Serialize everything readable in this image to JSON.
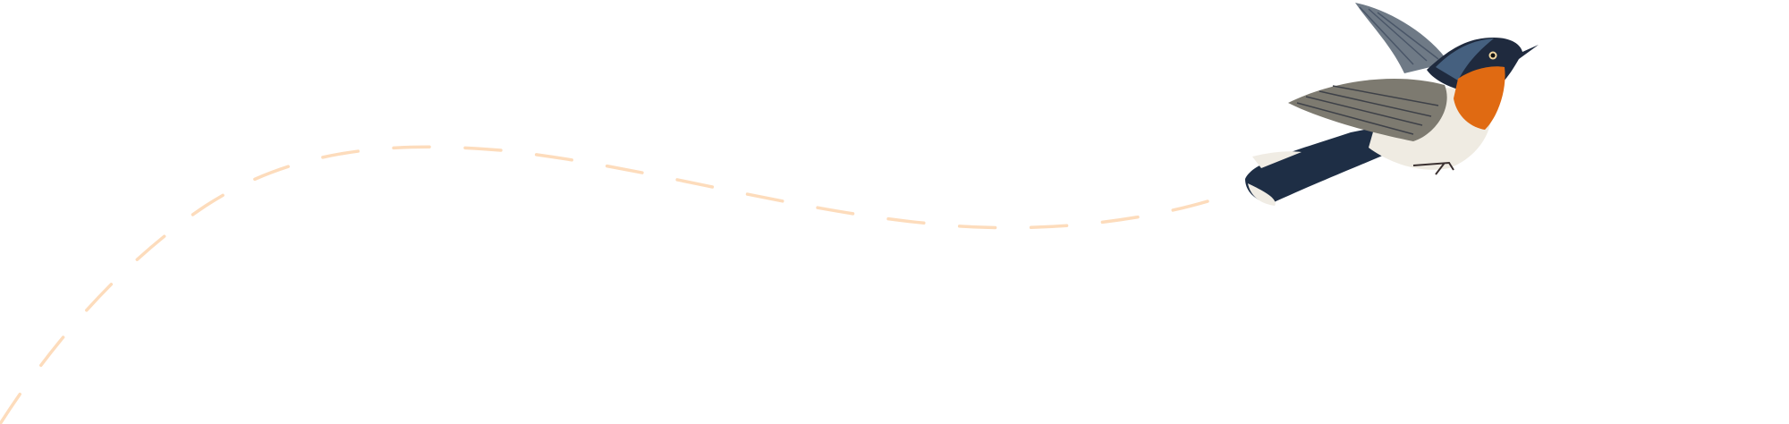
{
  "illustration": {
    "subject": "bird-in-flight",
    "flight_path_style": "dashed",
    "colors": {
      "flight_path": "#fddcbc",
      "bird_back": "#2b3f5c",
      "bird_throat": "#e06a12",
      "bird_belly": "#f1ede4",
      "bird_wing": "#7d7a70"
    }
  }
}
